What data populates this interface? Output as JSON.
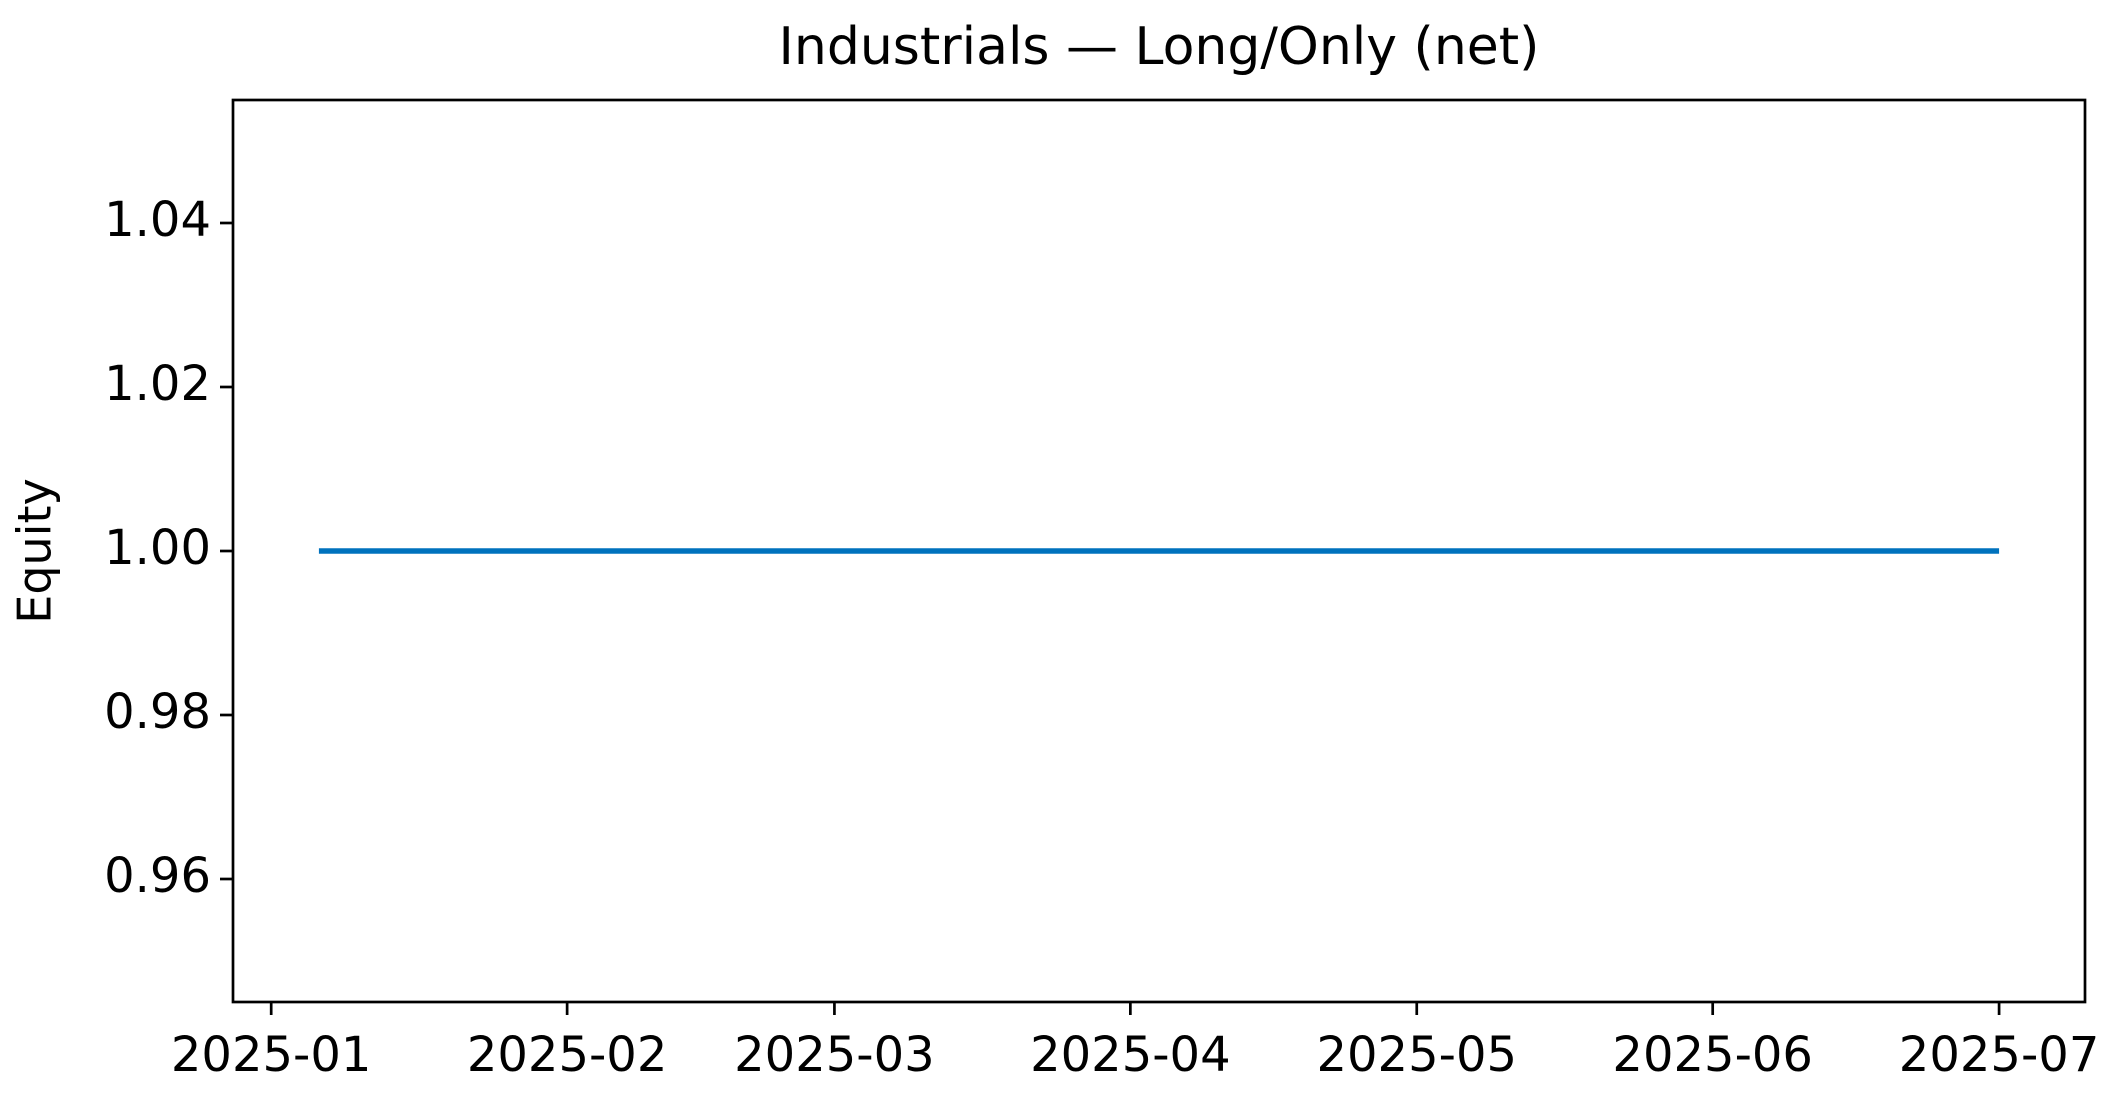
{
  "chart_data": {
    "type": "line",
    "title": "Industrials — Long/Only (net)",
    "ylabel": "Equity",
    "x": [
      "2025-01-06",
      "2025-07-01"
    ],
    "values": [
      1.0,
      1.0
    ],
    "color": "#0072bd",
    "xlim": [
      "2024-12-28",
      "2025-07-10"
    ],
    "xticks": [
      "2025-01",
      "2025-02",
      "2025-03",
      "2025-04",
      "2025-05",
      "2025-06",
      "2025-07"
    ],
    "ylim": [
      0.945,
      1.055
    ],
    "yticks": [
      {
        "value": 0.96,
        "label": "0.96"
      },
      {
        "value": 0.98,
        "label": "0.98"
      },
      {
        "value": 1.0,
        "label": "1.00"
      },
      {
        "value": 1.02,
        "label": "1.02"
      },
      {
        "value": 1.04,
        "label": "1.04"
      }
    ],
    "grid": false
  }
}
